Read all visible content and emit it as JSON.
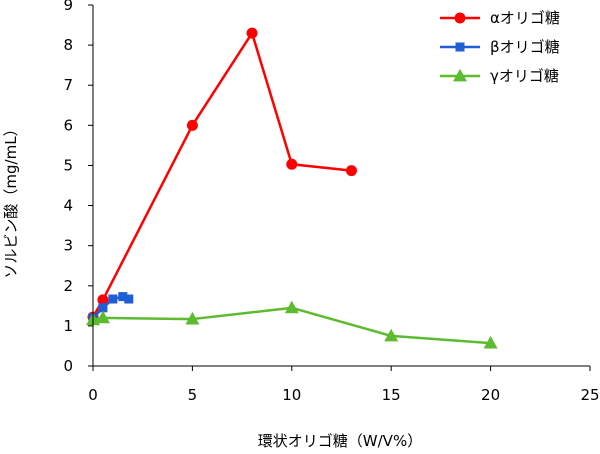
{
  "chart_data": {
    "type": "line",
    "xlabel": "環状オリゴ糖（W/V%）",
    "ylabel": "ソルビン酸（mg/mL）",
    "xlim": [
      0,
      25
    ],
    "ylim": [
      0,
      9
    ],
    "xticks": [
      0,
      5,
      10,
      15,
      20,
      25
    ],
    "yticks": [
      0,
      1,
      2,
      3,
      4,
      5,
      6,
      7,
      8,
      9
    ],
    "grid": false,
    "legend_position": "top-right",
    "series": [
      {
        "name": "αオリゴ糖",
        "color": "#ff0000",
        "marker": "circle",
        "x": [
          0,
          0.5,
          5,
          8,
          10,
          13
        ],
        "y": [
          1.22,
          1.65,
          6.0,
          8.3,
          5.03,
          4.87
        ]
      },
      {
        "name": "βオリゴ糖",
        "color": "#1f5fd6",
        "marker": "square",
        "x": [
          0,
          0.5,
          1,
          1.5,
          1.8
        ],
        "y": [
          1.2,
          1.45,
          1.67,
          1.73,
          1.67
        ]
      },
      {
        "name": "γオリゴ糖",
        "color": "#5dbb2f",
        "marker": "triangle",
        "x": [
          0,
          0.5,
          5,
          10,
          15,
          20
        ],
        "y": [
          1.15,
          1.2,
          1.17,
          1.45,
          0.75,
          0.57
        ]
      }
    ]
  }
}
